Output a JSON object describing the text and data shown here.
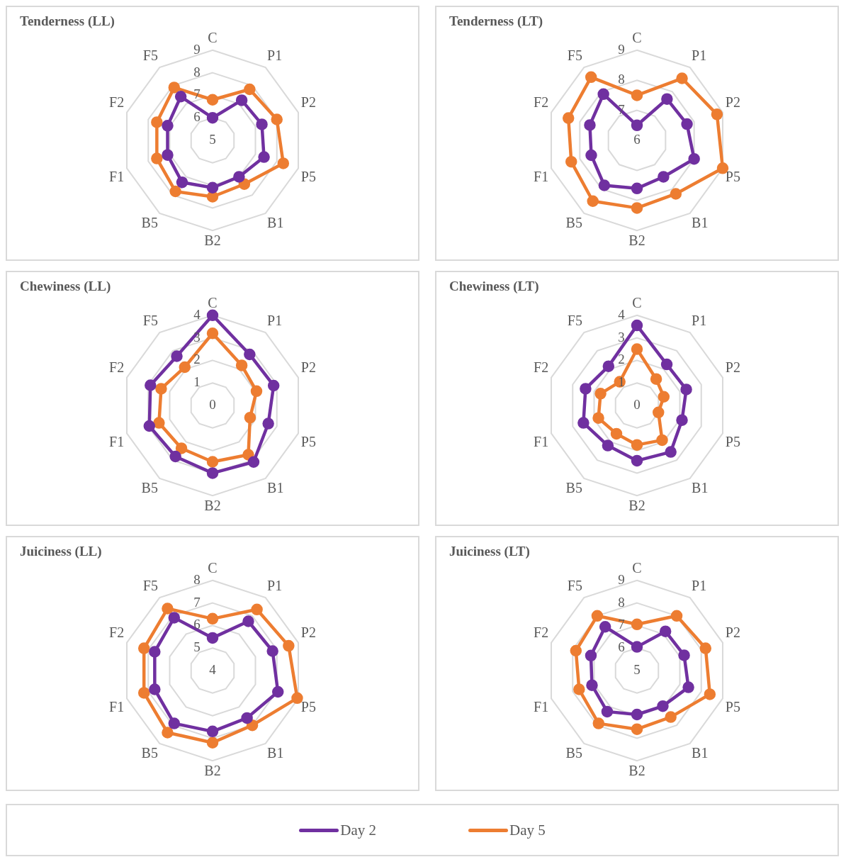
{
  "chart_data": [
    {
      "type": "radar",
      "title": "Tenderness (LL)",
      "categories": [
        "C",
        "P1",
        "P2",
        "P5",
        "B1",
        "B2",
        "B5",
        "F1",
        "F2",
        "F5"
      ],
      "ylim": [
        5,
        9
      ],
      "yticks": [
        5,
        6,
        7,
        8,
        9
      ],
      "marker": "circle",
      "legend": "bottom",
      "series": [
        {
          "name": "Day 2",
          "color": "#7030a0",
          "values": [
            6.0,
            7.2,
            7.3,
            7.4,
            7.0,
            7.1,
            7.3,
            7.1,
            7.1,
            7.4
          ]
        },
        {
          "name": "Day 5",
          "color": "#ed7d31",
          "values": [
            6.8,
            7.8,
            8.0,
            8.3,
            7.4,
            7.5,
            7.8,
            7.6,
            7.6,
            7.9
          ]
        }
      ]
    },
    {
      "type": "radar",
      "title": "Tenderness (LT)",
      "categories": [
        "C",
        "P1",
        "P2",
        "P5",
        "B1",
        "B2",
        "B5",
        "F1",
        "F2",
        "F5"
      ],
      "ylim": [
        6,
        9
      ],
      "yticks": [
        6,
        7,
        8,
        9
      ],
      "marker": "circle",
      "legend": "bottom",
      "series": [
        {
          "name": "Day 2",
          "color": "#7030a0",
          "values": [
            6.5,
            7.7,
            7.75,
            8.0,
            7.5,
            7.6,
            7.85,
            7.6,
            7.65,
            7.9
          ]
        },
        {
          "name": "Day 5",
          "color": "#ed7d31",
          "values": [
            7.5,
            8.55,
            8.8,
            9.0,
            8.2,
            8.25,
            8.5,
            8.3,
            8.4,
            8.6
          ]
        }
      ]
    },
    {
      "type": "radar",
      "title": "Chewiness (LL)",
      "categories": [
        "C",
        "P1",
        "P2",
        "P5",
        "B1",
        "B2",
        "B5",
        "F1",
        "F2",
        "F5"
      ],
      "ylim": [
        0,
        4
      ],
      "yticks": [
        0,
        1,
        2,
        3,
        4
      ],
      "marker": "circle",
      "legend": "bottom",
      "series": [
        {
          "name": "Day 2",
          "color": "#7030a0",
          "values": [
            4.0,
            2.8,
            2.85,
            2.6,
            3.1,
            3.0,
            2.8,
            2.95,
            2.9,
            2.7
          ]
        },
        {
          "name": "Day 5",
          "color": "#ed7d31",
          "values": [
            3.2,
            2.2,
            2.05,
            1.75,
            2.7,
            2.5,
            2.35,
            2.5,
            2.4,
            2.1
          ]
        }
      ]
    },
    {
      "type": "radar",
      "title": "Chewiness (LT)",
      "categories": [
        "C",
        "P1",
        "P2",
        "P5",
        "B1",
        "B2",
        "B5",
        "F1",
        "F2",
        "F5"
      ],
      "ylim": [
        0,
        4
      ],
      "yticks": [
        0,
        1,
        2,
        3,
        4
      ],
      "marker": "circle",
      "legend": "bottom",
      "series": [
        {
          "name": "Day 2",
          "color": "#7030a0",
          "values": [
            3.55,
            2.25,
            2.3,
            2.1,
            2.55,
            2.45,
            2.2,
            2.5,
            2.4,
            2.15
          ]
        },
        {
          "name": "Day 5",
          "color": "#ed7d31",
          "values": [
            2.5,
            1.45,
            1.25,
            1.0,
            1.9,
            1.75,
            1.55,
            1.8,
            1.7,
            1.3
          ]
        }
      ]
    },
    {
      "type": "radar",
      "title": "Juiciness (LL)",
      "categories": [
        "C",
        "P1",
        "P2",
        "P5",
        "B1",
        "B2",
        "B5",
        "F1",
        "F2",
        "F5"
      ],
      "ylim": [
        4,
        8
      ],
      "yticks": [
        4,
        5,
        6,
        7,
        8
      ],
      "marker": "circle",
      "legend": "bottom",
      "series": [
        {
          "name": "Day 2",
          "color": "#7030a0",
          "values": [
            5.45,
            6.7,
            6.8,
            7.05,
            6.6,
            6.7,
            6.9,
            6.7,
            6.7,
            6.9
          ]
        },
        {
          "name": "Day 5",
          "color": "#ed7d31",
          "values": [
            6.3,
            7.35,
            7.55,
            7.95,
            7.0,
            7.2,
            7.4,
            7.2,
            7.2,
            7.4
          ]
        }
      ]
    },
    {
      "type": "radar",
      "title": "Juiciness (LT)",
      "categories": [
        "C",
        "P1",
        "P2",
        "P5",
        "B1",
        "B2",
        "B5",
        "F1",
        "F2",
        "F5"
      ],
      "ylim": [
        5,
        9
      ],
      "yticks": [
        5,
        6,
        7,
        8,
        9
      ],
      "marker": "circle",
      "legend": "bottom",
      "series": [
        {
          "name": "Day 2",
          "color": "#7030a0",
          "values": [
            6.05,
            7.15,
            7.2,
            7.4,
            6.95,
            6.95,
            7.25,
            7.1,
            7.15,
            7.4
          ]
        },
        {
          "name": "Day 5",
          "color": "#ed7d31",
          "values": [
            7.05,
            8.0,
            8.2,
            8.4,
            7.55,
            7.6,
            7.9,
            7.7,
            7.85,
            8.0
          ]
        }
      ]
    }
  ]
}
